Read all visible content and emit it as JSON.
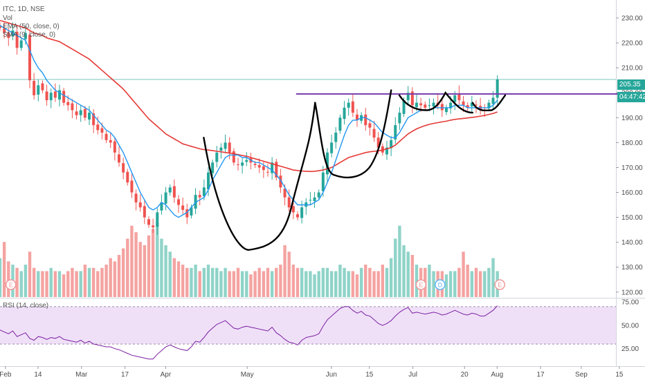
{
  "header": {
    "symbol": "ITC, 1D, NSE",
    "indicators": [
      "Vol",
      "EMA (50, close, 0)",
      "SMA (9, close, 0)"
    ],
    "rsi_label": "RSI (14, close)"
  },
  "price_tag": {
    "value": "205.35",
    "timer": "04:47:42"
  },
  "colors": {
    "up": "#26a69a",
    "down": "#ef5350",
    "ema": "#e53935",
    "sma": "#2196f3",
    "resistance": "#7b3fb0",
    "rsi": "#7b1fa2",
    "rsi_band": "#e9d6f5",
    "up_vol": "#8fd3c8",
    "down_vol": "#f4a3a1",
    "earnings": "#ef9a9a",
    "dividend": "#64b5f6"
  },
  "chart_data": [
    {
      "type": "candlestick",
      "y_ticks": [
        "230.00",
        "220.00",
        "210.00",
        "200.00",
        "190.00",
        "180.00",
        "170.00",
        "160.00",
        "150.00",
        "140.00",
        "130.00",
        "120.00"
      ],
      "ylim": [
        118,
        235
      ],
      "x_ticks": [
        {
          "label": "Feb",
          "day": 2
        },
        {
          "label": "14",
          "day": 14
        },
        {
          "label": "Mar",
          "day": 30
        },
        {
          "label": "17",
          "day": 46
        },
        {
          "label": "Apr",
          "day": 61
        },
        {
          "label": "May",
          "day": 91
        },
        {
          "label": "Jun",
          "day": 122
        },
        {
          "label": "15",
          "day": 136
        },
        {
          "label": "Jul",
          "day": 152
        },
        {
          "label": "20",
          "day": 171
        },
        {
          "label": "Aug",
          "day": 183
        },
        {
          "label": "17",
          "day": 199
        },
        {
          "label": "Sep",
          "day": 214
        },
        {
          "label": "15",
          "day": 228
        }
      ],
      "close": [
        226,
        224,
        222,
        225,
        218,
        221,
        224,
        205,
        199,
        203,
        201,
        197,
        200,
        198,
        201,
        196,
        195,
        193,
        191,
        193,
        190,
        192,
        187,
        185,
        184,
        181,
        180,
        176,
        172,
        168,
        164,
        160,
        156,
        154,
        150,
        147,
        146,
        152,
        156,
        160,
        162,
        158,
        155,
        153,
        150,
        154,
        159,
        158,
        162,
        168,
        172,
        176,
        178,
        180,
        176,
        172,
        171,
        172,
        173,
        172,
        171,
        170,
        169,
        168,
        172,
        166,
        162,
        158,
        154,
        152,
        150,
        154,
        156,
        157,
        158,
        160,
        168,
        176,
        180,
        184,
        190,
        194,
        196,
        192,
        189,
        191,
        187,
        186,
        182,
        178,
        176,
        178,
        181,
        187,
        192,
        197,
        200,
        195,
        196,
        195,
        194,
        195,
        196,
        195,
        193,
        194,
        196,
        199,
        197,
        195,
        194,
        196,
        195,
        193,
        193,
        196,
        198,
        205.35
      ],
      "volume": [
        12,
        17,
        11,
        10,
        9,
        8,
        10,
        14,
        9,
        8,
        8,
        8,
        9,
        8,
        8,
        7,
        8,
        9,
        8,
        8,
        10,
        9,
        9,
        8,
        9,
        10,
        12,
        11,
        13,
        15,
        18,
        22,
        20,
        17,
        16,
        19,
        21,
        23,
        18,
        16,
        14,
        12,
        11,
        10,
        9,
        9,
        10,
        8,
        9,
        10,
        9,
        9,
        8,
        9,
        8,
        8,
        9,
        8,
        8,
        7,
        8,
        9,
        8,
        9,
        8,
        9,
        10,
        16,
        14,
        10,
        9,
        9,
        8,
        8,
        7,
        8,
        9,
        9,
        8,
        8,
        10,
        9,
        8,
        8,
        7,
        9,
        10,
        9,
        8,
        8,
        10,
        9,
        12,
        18,
        22,
        16,
        14,
        13,
        10,
        9,
        9,
        10,
        8,
        8,
        8,
        7,
        8,
        8,
        9,
        14,
        10,
        8,
        9,
        8,
        8,
        9,
        12,
        8
      ],
      "ema50": [
        229,
        228.5,
        228,
        227.5,
        227,
        226.5,
        226,
        225,
        224,
        223.5,
        223,
        222,
        221.5,
        221,
        220.5,
        219.5,
        218.5,
        217.5,
        216.5,
        215.5,
        214.5,
        213.5,
        212,
        210.5,
        209,
        207.5,
        206,
        204.5,
        203,
        201.5,
        199.5,
        197.5,
        195.5,
        193.5,
        191.5,
        189.5,
        188,
        186.5,
        185,
        183.5,
        182.5,
        181.5,
        180.5,
        179.5,
        179,
        178.5,
        178,
        177.5,
        177.2,
        177,
        176.8,
        176.5,
        176.3,
        176,
        175.8,
        175.5,
        175.2,
        174.8,
        174.5,
        174,
        173.5,
        173,
        172.5,
        172,
        171.5,
        171,
        170.5,
        170,
        169.5,
        169,
        168.8,
        168.6,
        168.5,
        168.4,
        168.5,
        168.7,
        169,
        169.5,
        170,
        171,
        172,
        173,
        174,
        174.5,
        175,
        175.5,
        176,
        176.3,
        176.5,
        176.7,
        177,
        177.5,
        178,
        179,
        180.5,
        182,
        183.5,
        184.5,
        185.5,
        186.2,
        186.8,
        187.3,
        187.7,
        188,
        188.3,
        188.6,
        189,
        189.3,
        189.5,
        189.7,
        189.9,
        190.1,
        190.3,
        190.6,
        190.9,
        191.3,
        191.7,
        192.3
      ],
      "sma9": [
        227,
        226,
        225,
        224,
        223,
        222,
        221,
        217,
        213,
        210,
        208,
        205,
        203,
        201,
        200,
        199,
        198,
        197,
        196,
        195,
        194,
        193,
        191,
        189,
        187,
        185,
        184,
        182,
        179,
        176,
        172,
        168,
        164,
        160,
        157,
        154,
        153,
        154,
        156,
        155,
        153,
        151,
        150,
        151,
        152,
        154,
        156,
        157,
        158,
        161,
        165,
        168,
        171,
        174,
        175,
        175,
        175,
        174,
        174,
        173,
        172,
        172,
        171,
        170,
        169,
        167,
        165,
        162,
        159,
        157,
        155,
        155,
        155,
        155,
        156,
        157,
        160,
        164,
        168,
        173,
        178,
        183,
        187,
        189,
        189,
        190,
        190,
        189,
        188,
        186,
        184,
        183,
        182,
        182,
        184,
        187,
        190,
        191,
        192,
        193,
        193,
        193,
        194,
        194,
        194,
        194,
        194,
        195,
        195,
        195,
        194,
        194,
        194,
        194,
        194,
        194,
        195,
        197
      ],
      "resistance": {
        "value": 199.5,
        "from_day": 109,
        "to_day": 242
      },
      "last_price": 205.35
    },
    {
      "type": "line",
      "title": "RSI (14, close)",
      "y_ticks": [
        "75.00",
        "50.00",
        "25.00"
      ],
      "ylim": [
        10,
        78
      ],
      "band": [
        30,
        70
      ],
      "values": [
        45,
        43,
        41,
        44,
        38,
        40,
        42,
        36,
        34,
        38,
        37,
        35,
        37,
        36,
        38,
        35,
        34,
        33,
        32,
        34,
        31,
        33,
        30,
        29,
        28,
        27,
        27,
        25,
        24,
        22,
        20,
        18,
        17,
        16,
        15,
        14,
        14,
        19,
        23,
        27,
        29,
        27,
        25,
        24,
        23,
        27,
        33,
        32,
        37,
        43,
        47,
        51,
        53,
        55,
        51,
        47,
        46,
        48,
        49,
        48,
        47,
        46,
        45,
        44,
        48,
        42,
        39,
        35,
        32,
        31,
        29,
        34,
        37,
        38,
        39,
        41,
        49,
        56,
        60,
        64,
        68,
        70,
        70,
        66,
        63,
        65,
        61,
        60,
        56,
        52,
        50,
        52,
        55,
        60,
        64,
        67,
        69,
        63,
        64,
        63,
        62,
        63,
        64,
        63,
        61,
        62,
        64,
        66,
        64,
        62,
        61,
        63,
        62,
        60,
        60,
        63,
        66,
        71
      ]
    }
  ],
  "markers": [
    {
      "day": 4,
      "letter": "E"
    },
    {
      "day": 155,
      "letter": "E"
    },
    {
      "day": 162,
      "letter": "D"
    },
    {
      "day": 184,
      "letter": "E"
    }
  ]
}
